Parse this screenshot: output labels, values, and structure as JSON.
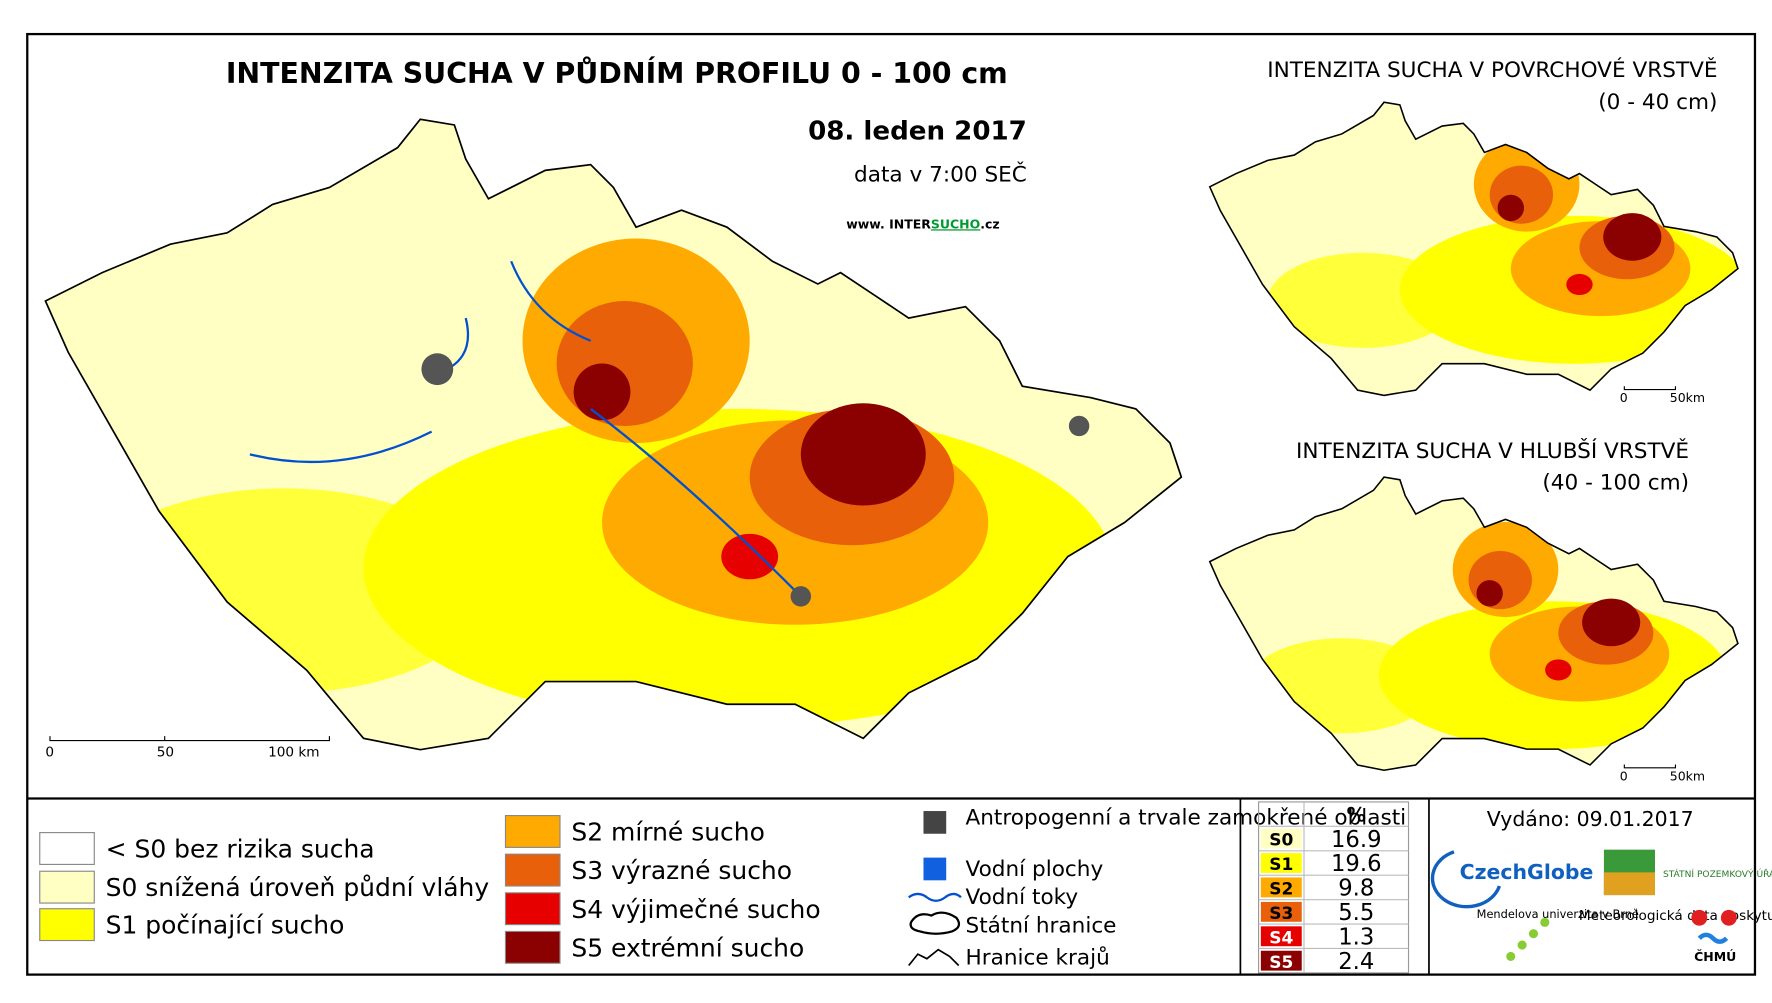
{
  "main": {
    "title": "INTENZITA SUCHA V PŮDNÍM PROFILU 0 - 100 cm",
    "date": "08. leden 2017",
    "time_note": "data v 7:00 SEČ",
    "website": {
      "prefix": "www. INTER",
      "highlight": "SUCHO",
      "suffix": ".cz"
    },
    "scale": [
      "0",
      "50",
      "100 km"
    ]
  },
  "inset_surface": {
    "title": "INTENZITA SUCHA V POVRCHOVÉ VRSTVĚ",
    "depth": "(0 - 40 cm)",
    "scale": [
      "0",
      "50km"
    ]
  },
  "inset_deep": {
    "title": "INTENZITA SUCHA V HLUBŠÍ VRSTVĚ",
    "depth": "(40 - 100 cm)",
    "scale": [
      "0",
      "50km"
    ]
  },
  "legend_classes": [
    {
      "label": "< S0 bez rizika sucha",
      "color": "#ffffff"
    },
    {
      "label": "S0 snížená úroveň půdní vláhy",
      "color": "#ffffc4"
    },
    {
      "label": "S1 počínající sucho",
      "color": "#ffff00"
    },
    {
      "label": "S2 mírné sucho",
      "color": "#ffaa00"
    },
    {
      "label": "S3 výrazné sucho",
      "color": "#e8600a"
    },
    {
      "label": "S4 výjimečné sucho",
      "color": "#e60000"
    },
    {
      "label": "S5 extrémní sucho",
      "color": "#8b0000"
    }
  ],
  "legend_features": [
    "Antropogenní a trvale zamokřené oblasti",
    "Vodní plochy",
    "Vodní toky",
    "Státní hranice",
    "Hranice krajů"
  ],
  "table": {
    "header": "%",
    "rows": [
      [
        "S0",
        "16.9"
      ],
      [
        "S1",
        "19.6"
      ],
      [
        "S2",
        "9.8"
      ],
      [
        "S3",
        "5.5"
      ],
      [
        "S4",
        "1.3"
      ],
      [
        "S5",
        "2.4"
      ]
    ]
  },
  "issued": "Vydáno: 09.01.2017",
  "logos": {
    "czechglobe": "CzechGlobe",
    "spu": "STÁTNÍ POZEMKOVÝ ÚŘAD",
    "mendel": "Mendelova univerzita v Brně",
    "met": "Meteorologická data poskytuje:",
    "chmu": "ČHMÚ"
  }
}
